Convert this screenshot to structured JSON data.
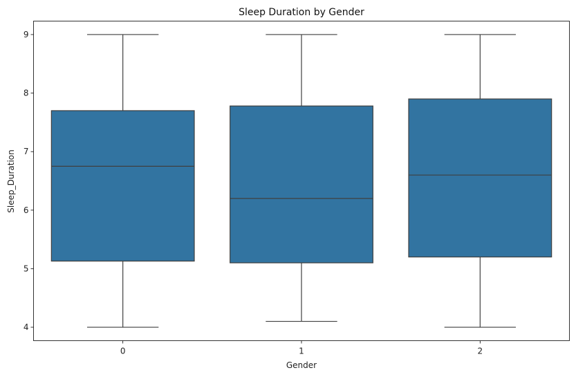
{
  "chart_data": {
    "type": "box",
    "title": "Sleep Duration by Gender",
    "xlabel": "Gender",
    "ylabel": "Sleep_Duration",
    "categories": [
      "0",
      "1",
      "2"
    ],
    "boxes": [
      {
        "category": "0",
        "whisker_low": 4.0,
        "q1": 5.13,
        "median": 6.75,
        "q3": 7.7,
        "whisker_high": 9.0
      },
      {
        "category": "1",
        "whisker_low": 4.1,
        "q1": 5.1,
        "median": 6.2,
        "q3": 7.78,
        "whisker_high": 9.0
      },
      {
        "category": "2",
        "whisker_low": 4.0,
        "q1": 5.2,
        "median": 6.6,
        "q3": 7.9,
        "whisker_high": 9.0
      }
    ],
    "ylim": [
      3.77,
      9.23
    ],
    "yticks": [
      "4",
      "5",
      "6",
      "7",
      "8",
      "9"
    ],
    "grid": false,
    "box_color": "#3274a1",
    "line_color": "#3f3f3f"
  }
}
